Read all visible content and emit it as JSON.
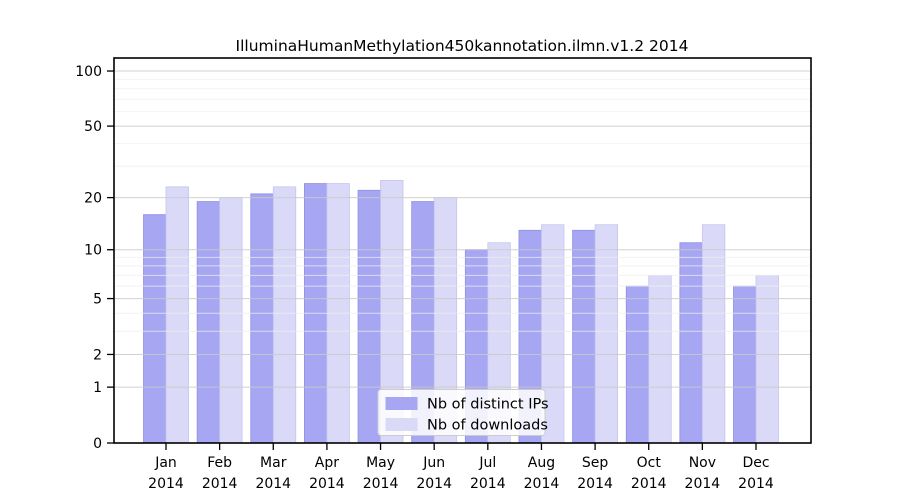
{
  "chart_data": {
    "type": "bar",
    "title": "IlluminaHumanMethylation450kannotation.ilmn.v1.2 2014",
    "year": "2014",
    "months": [
      "Jan",
      "Feb",
      "Mar",
      "Apr",
      "May",
      "Jun",
      "Jul",
      "Aug",
      "Sep",
      "Oct",
      "Nov",
      "Dec"
    ],
    "categories": [
      "Jan 2014",
      "Feb 2014",
      "Mar 2014",
      "Apr 2014",
      "May 2014",
      "Jun 2014",
      "Jul 2014",
      "Aug 2014",
      "Sep 2014",
      "Oct 2014",
      "Nov 2014",
      "Dec 2014"
    ],
    "series": [
      {
        "name": "Nb of distinct IPs",
        "color": "#a6a6f2",
        "border_color": "#8f8fe6",
        "values": [
          16,
          19,
          21,
          24,
          22,
          19,
          10,
          13,
          13,
          6,
          11,
          6
        ]
      },
      {
        "name": "Nb of downloads",
        "color": "#dadaf8",
        "border_color": "#c5c5f0",
        "values": [
          23,
          20,
          23,
          24,
          25,
          20,
          11,
          14,
          14,
          7,
          14,
          7
        ]
      }
    ],
    "y_axis": {
      "scale": "log1p",
      "ticks": [
        100,
        50,
        20,
        10,
        5,
        2,
        1,
        0
      ],
      "minor_ticks": [
        90,
        80,
        70,
        60,
        40,
        30,
        9,
        8,
        7,
        6,
        4,
        3
      ],
      "ylim": [
        0,
        100
      ]
    },
    "grid": true,
    "legend": {
      "position": "inside-bottom-center"
    },
    "colors": {
      "axis": "#000000",
      "major_grid": "#c9c9c9",
      "minor_grid": "#ededed",
      "legend_border": "#cccccc",
      "legend_background": "#ffffff"
    }
  }
}
